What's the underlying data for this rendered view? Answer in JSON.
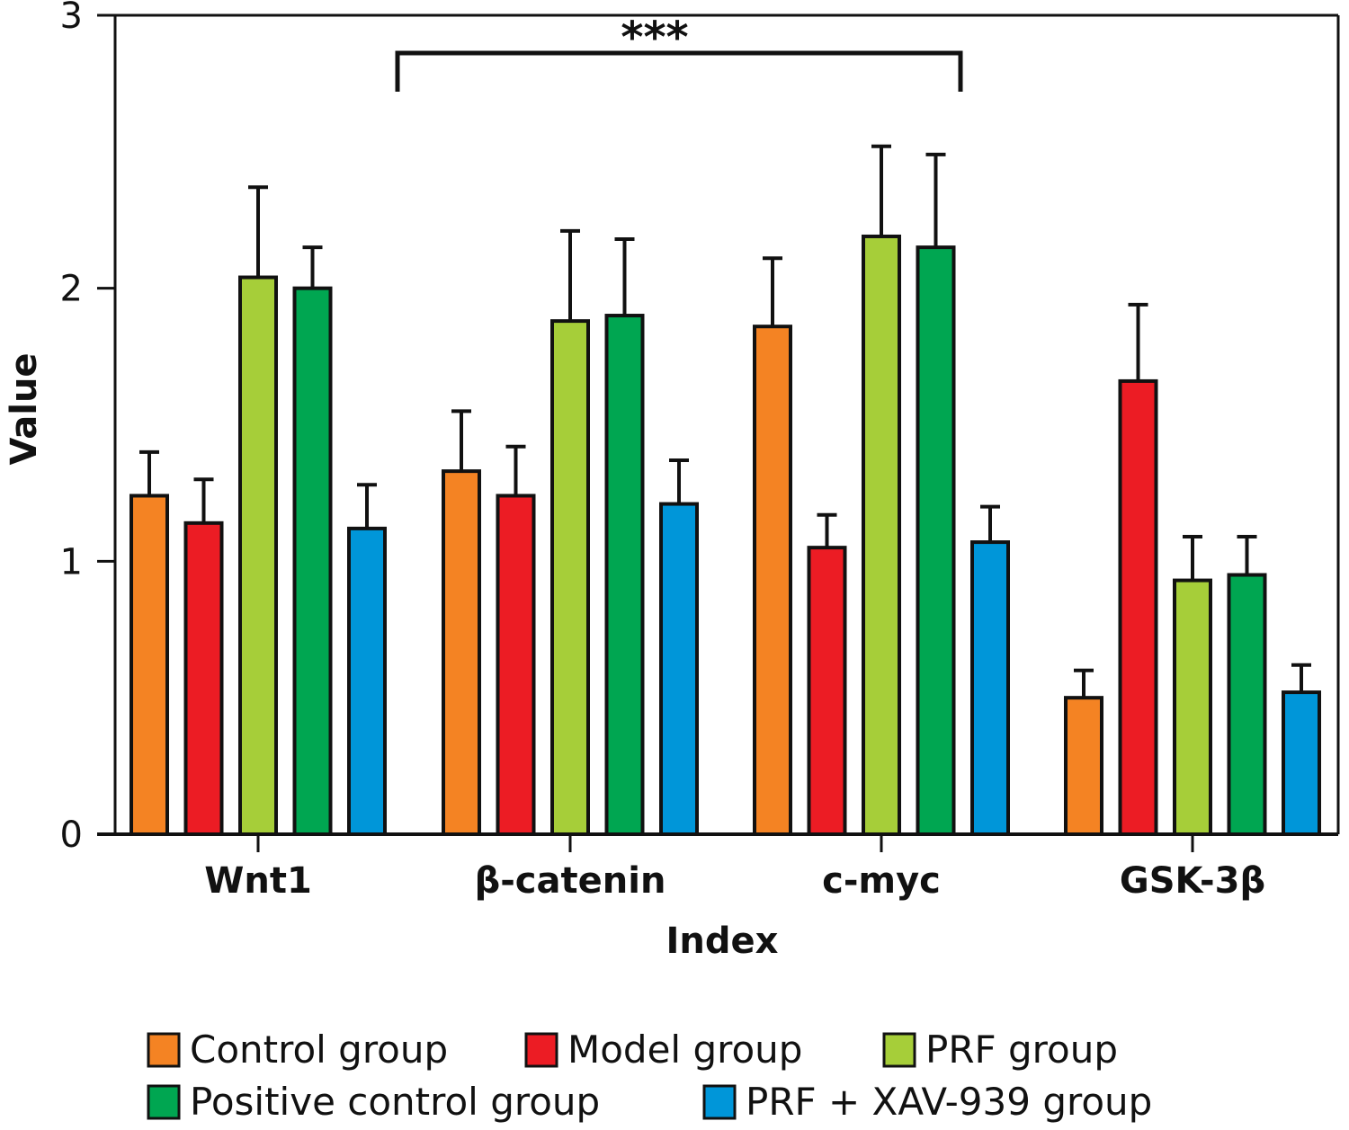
{
  "chart_data": {
    "type": "bar",
    "title": "",
    "xlabel": "Index",
    "ylabel": "Value",
    "ylim": [
      0,
      3
    ],
    "yticks": [
      "0",
      "1",
      "2",
      "3"
    ],
    "grid": false,
    "legend_position": "bottom",
    "categories": [
      "Wnt1",
      "β-catenin",
      "c-myc",
      "GSK-3β"
    ],
    "series": [
      {
        "name": "Control group",
        "color": "#f48323",
        "values": [
          1.24,
          1.33,
          1.86,
          0.5
        ],
        "errors": [
          0.16,
          0.22,
          0.25,
          0.1
        ]
      },
      {
        "name": "Model group",
        "color": "#ec1c24",
        "values": [
          1.14,
          1.24,
          1.05,
          1.66
        ],
        "errors": [
          0.16,
          0.18,
          0.12,
          0.28
        ]
      },
      {
        "name": "PRF group",
        "color": "#a6ce39",
        "values": [
          2.04,
          1.88,
          2.19,
          0.93
        ],
        "errors": [
          0.33,
          0.33,
          0.33,
          0.16
        ]
      },
      {
        "name": "Positive control group",
        "color": "#00a651",
        "values": [
          2.0,
          1.9,
          2.15,
          0.95
        ],
        "errors": [
          0.15,
          0.28,
          0.34,
          0.14
        ]
      },
      {
        "name": "PRF + XAV-939 group",
        "color": "#0096d9",
        "values": [
          1.12,
          1.21,
          1.07,
          0.52
        ],
        "errors": [
          0.16,
          0.16,
          0.13,
          0.1
        ]
      }
    ],
    "annotations": [
      {
        "text": "***",
        "type": "significance-bracket",
        "from_category": "Wnt1",
        "to_category": "c-myc"
      }
    ]
  }
}
